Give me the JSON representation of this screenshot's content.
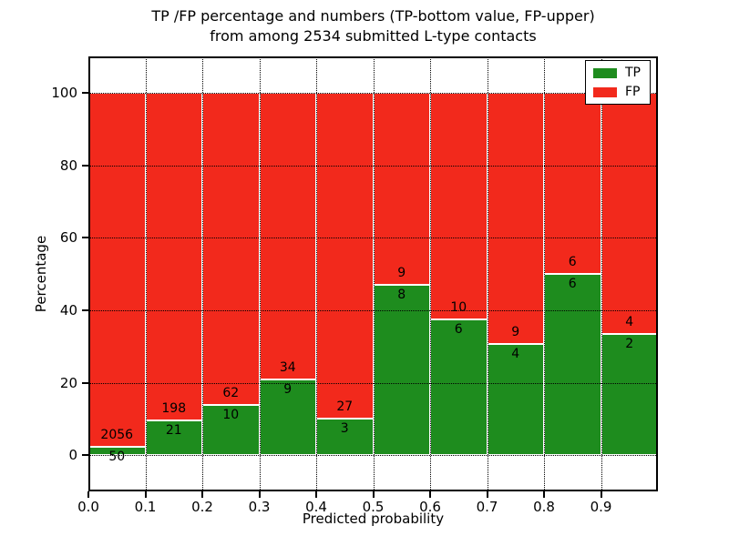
{
  "title": {
    "line1": "TP /FP percentage and numbers (TP-bottom value, FP-upper)",
    "line2": "from among 2534 submitted L-type contacts"
  },
  "legend": {
    "items": [
      {
        "label": "TP",
        "color": "#1e8c1e"
      },
      {
        "label": "FP",
        "color": "#f2291c"
      }
    ],
    "position": "upper right"
  },
  "chart_data": {
    "type": "bar",
    "stacked": true,
    "normalized": "each bin scaled to 100%; labels show raw counts (TP bottom, FP upper)",
    "title": "TP /FP percentage and numbers (TP-bottom value, FP-upper) from among 2534 submitted L-type contacts",
    "xlabel": "Predicted probability",
    "ylabel": "Percentage",
    "total_contacts": 2534,
    "categories": [
      "0.0-0.1",
      "0.1-0.2",
      "0.2-0.3",
      "0.3-0.4",
      "0.4-0.5",
      "0.5-0.6",
      "0.6-0.7",
      "0.7-0.8",
      "0.8-0.9",
      "0.9-1.0"
    ],
    "series": [
      {
        "name": "TP",
        "color": "#1e8c1e",
        "counts": [
          50,
          21,
          10,
          9,
          3,
          8,
          6,
          4,
          6,
          2
        ],
        "percent": [
          2.37,
          9.59,
          13.89,
          20.93,
          10.0,
          47.06,
          37.5,
          30.77,
          50.0,
          33.33
        ]
      },
      {
        "name": "FP",
        "color": "#f2291c",
        "counts": [
          2056,
          198,
          62,
          34,
          27,
          9,
          10,
          9,
          6,
          4
        ],
        "percent": [
          97.63,
          90.41,
          86.11,
          79.07,
          90.0,
          52.94,
          62.5,
          69.23,
          50.0,
          66.67
        ]
      }
    ],
    "xticks": [
      "0.0",
      "0.1",
      "0.2",
      "0.3",
      "0.4",
      "0.5",
      "0.6",
      "0.7",
      "0.8",
      "0.9"
    ],
    "yticks": [
      0,
      20,
      40,
      60,
      80,
      100
    ],
    "xlim": [
      0,
      1
    ],
    "ylim": [
      -10,
      110
    ],
    "grid": "dotted black, horizontal and vertical",
    "legend_position": "upper right"
  }
}
